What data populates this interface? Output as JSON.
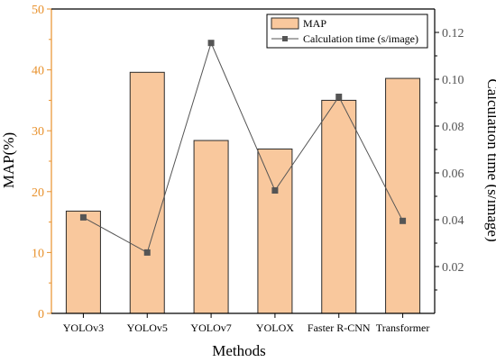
{
  "colors": {
    "bar_fill": "#f9c89d",
    "bar_stroke": "#2b2b2b",
    "line": "#555555",
    "marker": "#555555",
    "left_axis": "#e8912c",
    "right_axis": "#555555",
    "axis": "#000000"
  },
  "chart_data": {
    "type": "bar",
    "categories": [
      "YOLOv3",
      "YOLOv5",
      "YOLOv7",
      "YOLOX",
      "Faster R-CNN",
      "Transformer"
    ],
    "xlabel": "Methods",
    "ylabel": "MAP(%)",
    "y2label": "Calculation time (s/image)",
    "ylim": [
      0,
      50
    ],
    "yticks": [
      0,
      10,
      20,
      30,
      40,
      50
    ],
    "y2lim": [
      0.0,
      0.13
    ],
    "y2ticks": [
      0.02,
      0.04,
      0.06,
      0.08,
      0.1,
      0.12
    ],
    "legend_position": "top-right",
    "series": [
      {
        "name": "MAP",
        "type": "bar",
        "axis": "left",
        "values": [
          16.8,
          39.6,
          28.4,
          27.0,
          35.0,
          38.6
        ]
      },
      {
        "name": "Calculation time (s/image)",
        "type": "line",
        "axis": "right",
        "marker": "square",
        "values": [
          0.041,
          0.026,
          0.1155,
          0.0525,
          0.0925,
          0.0395
        ]
      }
    ]
  }
}
